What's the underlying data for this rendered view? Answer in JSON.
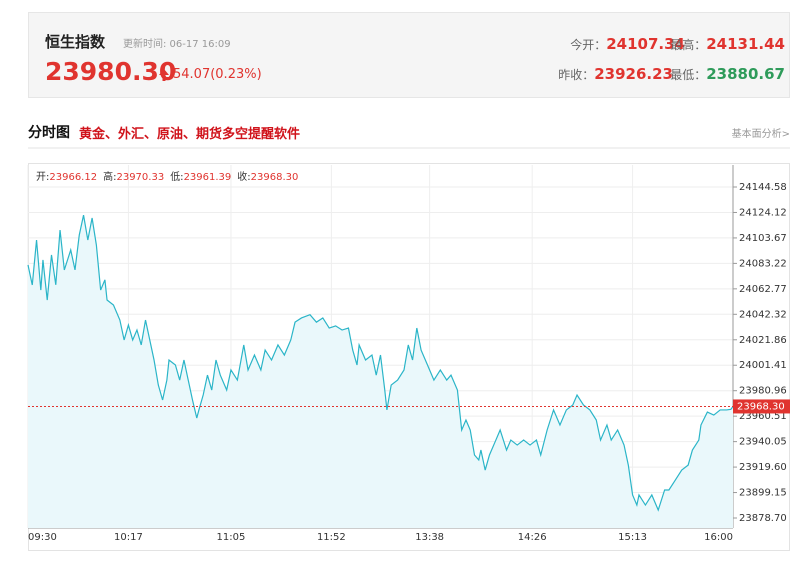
{
  "header": {
    "title": "恒生指数",
    "update_time": "更新时间: 06-17 16:09",
    "price": "23980.30",
    "change": "54.07(0.23%)",
    "stats": [
      {
        "label": "今开：",
        "value": "24107.34"
      },
      {
        "label": "最高：",
        "value": "24131.44"
      },
      {
        "label": "昨收：",
        "value": "23926.23"
      },
      {
        "label": "最低：",
        "value": "23880.67"
      }
    ]
  },
  "section": {
    "title": "分时图",
    "promo": "黄金、外汇、原油、期货多空提醒软件",
    "link": "基本面分析>"
  },
  "chart_data": {
    "type": "line",
    "ohlc": [
      {
        "label": "开:",
        "value": "23966.12"
      },
      {
        "label": "高:",
        "value": "23970.33"
      },
      {
        "label": "低:",
        "value": "23961.39"
      },
      {
        "label": "收:",
        "value": "23968.30"
      }
    ],
    "x": [
      "09:30",
      "09:32",
      "09:34",
      "09:36",
      "09:37",
      "09:39",
      "09:41",
      "09:43",
      "09:45",
      "09:47",
      "09:50",
      "09:52",
      "09:54",
      "09:56",
      "09:58",
      "10:00",
      "10:02",
      "10:04",
      "10:06",
      "10:07",
      "10:10",
      "10:13",
      "10:15",
      "10:17",
      "10:19",
      "10:21",
      "10:23",
      "10:25",
      "10:27",
      "10:29",
      "10:31",
      "10:33",
      "10:35",
      "10:36",
      "10:39",
      "10:41",
      "10:43",
      "10:45",
      "10:47",
      "10:49",
      "10:50",
      "10:52",
      "10:54",
      "10:56",
      "10:58",
      "11:00",
      "11:03",
      "11:05",
      "11:08",
      "11:11",
      "11:13",
      "11:16",
      "11:19",
      "11:21",
      "11:24",
      "11:27",
      "11:30",
      "11:33",
      "11:35",
      "11:38",
      "11:42",
      "11:45",
      "11:48",
      "11:51",
      "11:54",
      "11:57",
      "13:00",
      "13:02",
      "13:04",
      "13:05",
      "13:08",
      "13:11",
      "13:13",
      "13:15",
      "13:17",
      "13:18",
      "13:20",
      "13:23",
      "13:26",
      "13:28",
      "13:30",
      "13:32",
      "13:34",
      "13:37",
      "13:40",
      "13:43",
      "13:46",
      "13:48",
      "13:51",
      "13:53",
      "13:55",
      "13:57",
      "13:59",
      "14:01",
      "14:02",
      "14:04",
      "14:06",
      "14:09",
      "14:11",
      "14:14",
      "14:16",
      "14:19",
      "14:22",
      "14:25",
      "14:28",
      "14:30",
      "14:33",
      "14:36",
      "14:39",
      "14:42",
      "14:45",
      "14:47",
      "14:50",
      "14:53",
      "14:56",
      "14:58",
      "15:01",
      "15:03",
      "15:06",
      "15:09",
      "15:11",
      "15:13",
      "15:15",
      "15:16",
      "15:19",
      "15:22",
      "15:25",
      "15:28",
      "15:30",
      "15:33",
      "15:36",
      "15:39",
      "15:41",
      "15:44",
      "15:45",
      "15:48",
      "15:51",
      "15:54",
      "15:57",
      "15:59",
      "16:00"
    ],
    "series": [
      {
        "name": "恒生指数",
        "color": "#2bb5c8",
        "fill": "#eaf8fb",
        "values": [
          24081.9,
          24065.9,
          24102,
          24061.8,
          24086,
          24053.8,
          24090,
          24066,
          24110,
          24078,
          24094,
          24078,
          24106,
          24122,
          24102,
          24119.7,
          24098,
          24061.8,
          24070,
          24053.8,
          24049.8,
          24037.7,
          24021.7,
          24033.7,
          24021.7,
          24029.7,
          24017.7,
          24037.7,
          24021.7,
          24005.6,
          23985.5,
          23973.5,
          23989.5,
          24005.6,
          24001.6,
          23989.5,
          24005.6,
          23989.5,
          23973.5,
          23959,
          23965.5,
          23977.5,
          23993.5,
          23981.5,
          24005.6,
          23993.5,
          23981.5,
          23997.6,
          23989.5,
          24017.7,
          23997.6,
          24009.6,
          23997.6,
          24013.6,
          24005.6,
          24017.7,
          24009.6,
          24021.7,
          24036,
          24039.4,
          24042,
          24036,
          24039.4,
          24031.3,
          24033,
          24029.7,
          24031.3,
          24013.6,
          24001.6,
          24017.7,
          24005.6,
          24009.6,
          23993.5,
          24009.6,
          23981.5,
          23965.5,
          23985.5,
          23989.5,
          23997.6,
          24017.7,
          24005.6,
          24031.3,
          24013.6,
          24001.6,
          23989.5,
          23997.6,
          23989.5,
          23993.5,
          23981.5,
          23949.4,
          23957.4,
          23949.4,
          23929.3,
          23925.3,
          23933.3,
          23917.2,
          23929.3,
          23941.3,
          23949.4,
          23933.3,
          23941.3,
          23937.3,
          23941.3,
          23937.3,
          23941.3,
          23929.3,
          23949.4,
          23965.5,
          23953.4,
          23965.5,
          23969.5,
          23977.5,
          23969.5,
          23965.5,
          23957.4,
          23941.3,
          23953.4,
          23941.3,
          23949.4,
          23937.3,
          23921.2,
          23897.2,
          23889.1,
          23897.2,
          23889.1,
          23897.2,
          23885.1,
          23901.2,
          23901.2,
          23909.2,
          23917.2,
          23921.2,
          23933.3,
          23941.3,
          23953.4,
          23963.8,
          23961.4,
          23965.5,
          23965.5,
          23966,
          23968.3
        ]
      }
    ],
    "xlim": [
      "09:30",
      "16:00"
    ],
    "xticks": [
      "09:30",
      "10:17",
      "11:05",
      "11:52",
      "13:38",
      "14:26",
      "15:13",
      "16:00"
    ],
    "ylim": [
      23870.67,
      24162.25
    ],
    "yticks": [
      24144.58,
      24124.12,
      24103.67,
      24083.22,
      24062.77,
      24042.32,
      24021.86,
      24001.41,
      23980.96,
      23960.51,
      {
        "value": 23940.05,
        "label": "23940.05"
      },
      {
        "value": 23919.6,
        "label": "23919.60"
      },
      23899.15,
      {
        "value": 23878.7,
        "label": "23878.70"
      }
    ],
    "ref_line": {
      "value": 23968.3,
      "label": "23968.30",
      "color": "#e0342f"
    },
    "grid": true
  }
}
